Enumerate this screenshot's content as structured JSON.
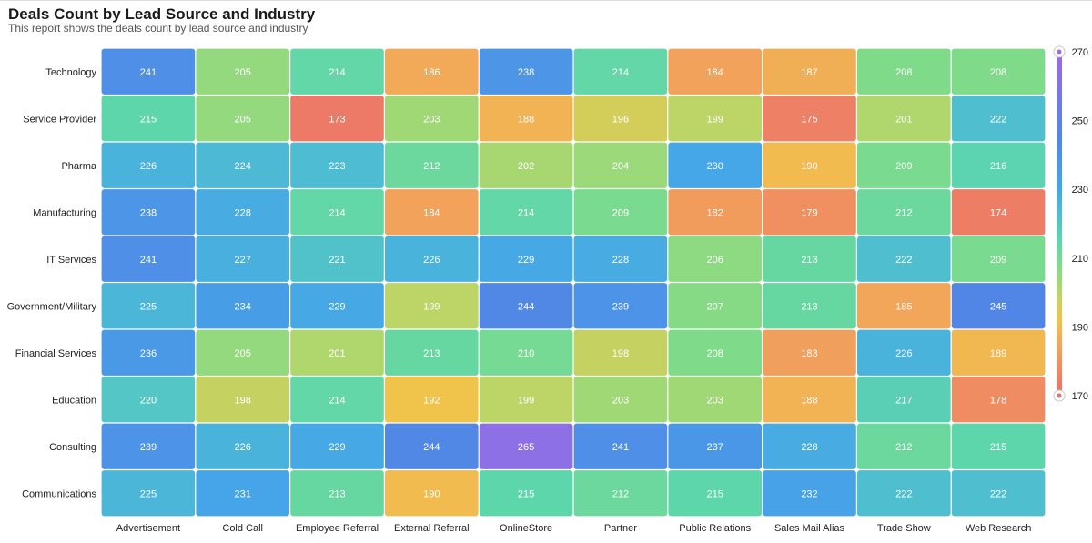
{
  "header": {
    "title": "Deals Count by Lead Source and Industry",
    "subtitle": "This report shows the deals count by lead source and industry"
  },
  "chart_data": {
    "type": "heatmap",
    "title": "Deals Count by Lead Source and Industry",
    "subtitle": "This report shows the deals count by lead source and industry",
    "x_categories": [
      "Advertisement",
      "Cold Call",
      "Employee Referral",
      "External Referral",
      "OnlineStore",
      "Partner",
      "Public Relations",
      "Sales Mail Alias",
      "Trade Show",
      "Web Research"
    ],
    "y_categories": [
      "Technology",
      "Service Provider",
      "Pharma",
      "Manufacturing",
      "IT Services",
      "Government/Military",
      "Financial Services",
      "Education",
      "Consulting",
      "Communications"
    ],
    "values": [
      [
        241,
        205,
        214,
        186,
        238,
        214,
        184,
        187,
        208,
        208
      ],
      [
        215,
        205,
        173,
        203,
        188,
        196,
        199,
        175,
        201,
        222
      ],
      [
        226,
        224,
        223,
        212,
        202,
        204,
        230,
        190,
        209,
        216
      ],
      [
        238,
        228,
        214,
        184,
        214,
        209,
        182,
        179,
        212,
        174
      ],
      [
        241,
        227,
        221,
        226,
        229,
        228,
        206,
        213,
        222,
        209
      ],
      [
        225,
        234,
        229,
        199,
        244,
        239,
        207,
        213,
        185,
        245
      ],
      [
        236,
        205,
        201,
        213,
        210,
        198,
        208,
        183,
        226,
        189
      ],
      [
        220,
        198,
        214,
        192,
        199,
        203,
        203,
        188,
        217,
        178
      ],
      [
        239,
        226,
        229,
        244,
        265,
        241,
        237,
        228,
        212,
        215
      ],
      [
        225,
        231,
        213,
        190,
        215,
        212,
        215,
        232,
        222,
        222
      ]
    ],
    "color_scale": {
      "min": 170,
      "max": 270,
      "ticks": [
        270,
        250,
        230,
        210,
        190,
        170
      ],
      "stops": [
        {
          "value": 170,
          "color": "#ec6e6a"
        },
        {
          "value": 185,
          "color": "#f2a65a"
        },
        {
          "value": 192,
          "color": "#f0c44a"
        },
        {
          "value": 200,
          "color": "#b6d66a"
        },
        {
          "value": 208,
          "color": "#7fdb8a"
        },
        {
          "value": 215,
          "color": "#5ed6ac"
        },
        {
          "value": 222,
          "color": "#4fbfcf"
        },
        {
          "value": 230,
          "color": "#45a6e8"
        },
        {
          "value": 245,
          "color": "#5286e6"
        },
        {
          "value": 270,
          "color": "#9d6ae6"
        }
      ]
    },
    "legend_position": "right",
    "grid": false
  }
}
